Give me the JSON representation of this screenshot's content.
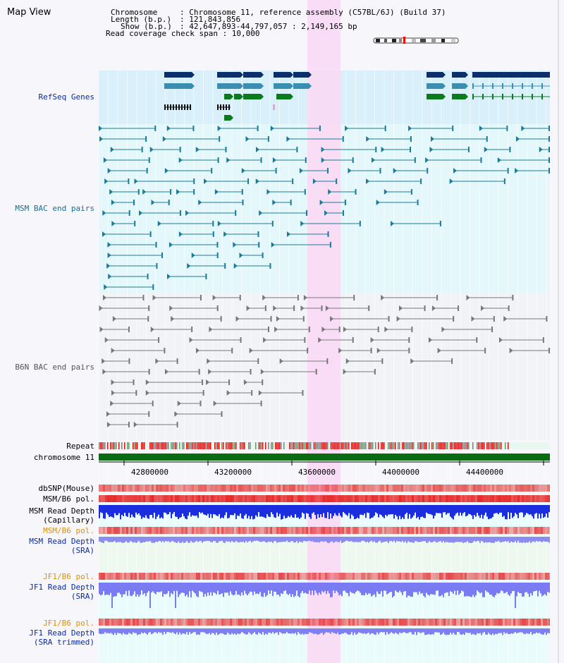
{
  "app": {
    "title": "Map View"
  },
  "header": {
    "chromosome_key": "Chromosome",
    "chromosome_val": ": Chromosome 11, reference assembly (C57BL/6J) (Build 37)",
    "length_key": "Length (b.p.)",
    "length_val": ": 121,843,856",
    "show_key": "Show (b.p.)",
    "show_val": ": 42,647,893-44,797,057 : 2,149,165 bp",
    "coverage": "Read coverage check span : 10,000"
  },
  "tracks": {
    "refseq": "RefSeq Genes",
    "msm_bac": "MSM BAC end pairs",
    "b6n_bac": "B6N BAC end pairs",
    "repeat": "Repeat",
    "chromosome": "chromosome 11",
    "dbsnp": "dbSNP(Mouse)",
    "msm_b6_pol": "MSM/B6 pol.",
    "msm_depth_cap_1": "MSM Read Depth",
    "msm_depth_cap_2": "(Capillary)",
    "msm_b6_pol2": "MSM/B6 pol.",
    "msm_depth_sra_1": "MSM Read Depth",
    "msm_depth_sra_2": "(SRA)",
    "jf1_b6_pol": "JF1/B6 pol.",
    "jf1_depth_1": "JF1 Read Depth",
    "jf1_depth_2": "(SRA)",
    "jf1_b6_pol2": "JF1/B6 pol.",
    "jf1_trim_1": "JF1 Read Depth",
    "jf1_trim_2": "(SRA trimmed)"
  },
  "axis": {
    "ticks": [
      "42800000",
      "43200000",
      "43600000",
      "44000000",
      "44400000"
    ]
  },
  "colors": {
    "gene_dark": "#0a2f6b",
    "gene_mid": "#3a8fb0",
    "gene_green": "#0b7a1d",
    "msm_line": "#1a7a9a",
    "b6n_line": "#777777",
    "highlight": "#f9d9f4",
    "chrom_bar": "#0b6b12",
    "label_blue": "#0b2aa0",
    "label_teal": "#1a6f8f",
    "label_orange": "#e09000"
  }
}
